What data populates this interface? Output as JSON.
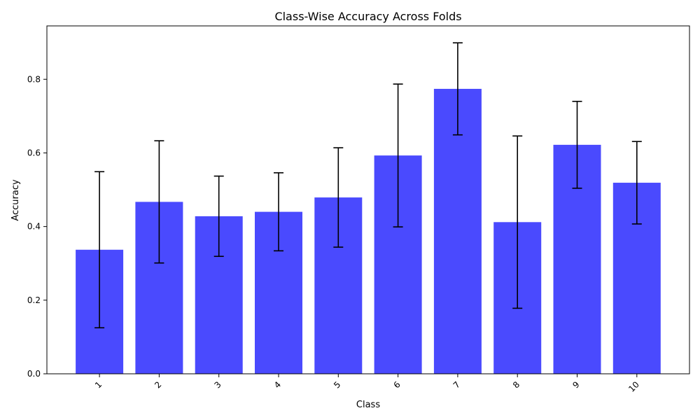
{
  "chart_data": {
    "type": "bar",
    "title": "Class-Wise Accuracy Across Folds",
    "xlabel": "Class",
    "ylabel": "Accuracy",
    "categories": [
      "1",
      "2",
      "3",
      "4",
      "5",
      "6",
      "7",
      "8",
      "9",
      "10"
    ],
    "values": [
      0.337,
      0.467,
      0.428,
      0.44,
      0.479,
      0.593,
      0.774,
      0.412,
      0.622,
      0.519
    ],
    "error": [
      0.212,
      0.166,
      0.109,
      0.106,
      0.135,
      0.194,
      0.125,
      0.234,
      0.118,
      0.112
    ],
    "yticks": [
      "0.0",
      "0.2",
      "0.4",
      "0.6",
      "0.8"
    ],
    "ylim": [
      0,
      0.945
    ],
    "grid": false,
    "legend": "none",
    "bar_color": "#4a4afe",
    "error_color": "#000000"
  }
}
